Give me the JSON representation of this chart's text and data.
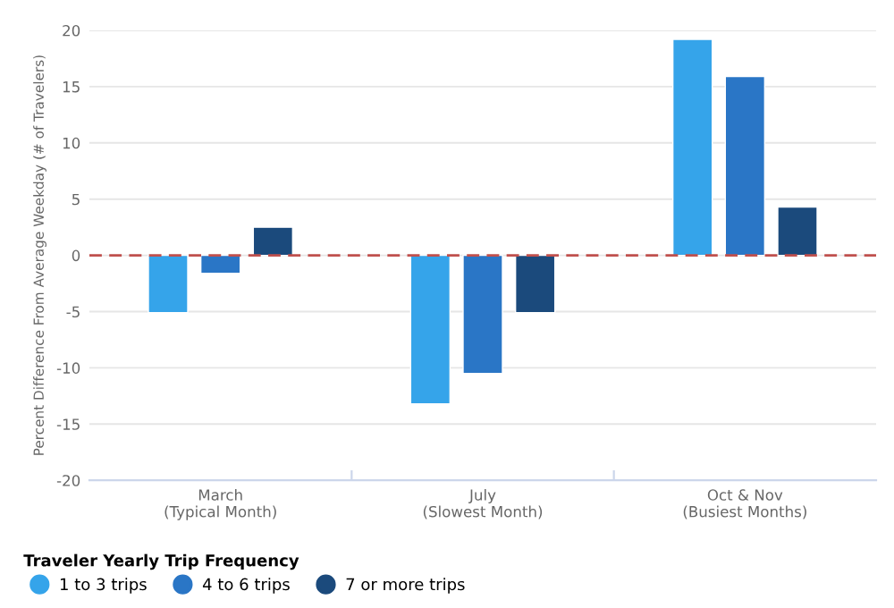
{
  "chart_data": {
    "type": "bar",
    "ylabel": "Percent Difference From Average Weekday (# of Travelers)",
    "legend_title": "Traveler Yearly Trip Frequency",
    "categories": [
      "March\n(Typical Month)",
      "July\n(Slowest Month)",
      "Oct & Nov\n(Busiest Months)"
    ],
    "series": [
      {
        "name": "1 to 3 trips",
        "color": "#35a4ea",
        "values": [
          -5.1,
          -13.2,
          19.2
        ]
      },
      {
        "name": "4 to 6 trips",
        "color": "#2a76c6",
        "values": [
          -1.6,
          -10.5,
          15.9
        ]
      },
      {
        "name": "7 or more trips",
        "color": "#1b4a7c",
        "values": [
          2.5,
          -5.1,
          4.3
        ]
      }
    ],
    "ylim": [
      -20,
      20
    ],
    "yticks": [
      -20,
      -15,
      -10,
      -5,
      0,
      5,
      10,
      15,
      20
    ],
    "grid": "y",
    "legend": "bottom left",
    "ref_lines": [
      {
        "axis": "y",
        "value": 0,
        "label": null,
        "color": "#c0504d",
        "line_style": "dashed"
      }
    ]
  }
}
